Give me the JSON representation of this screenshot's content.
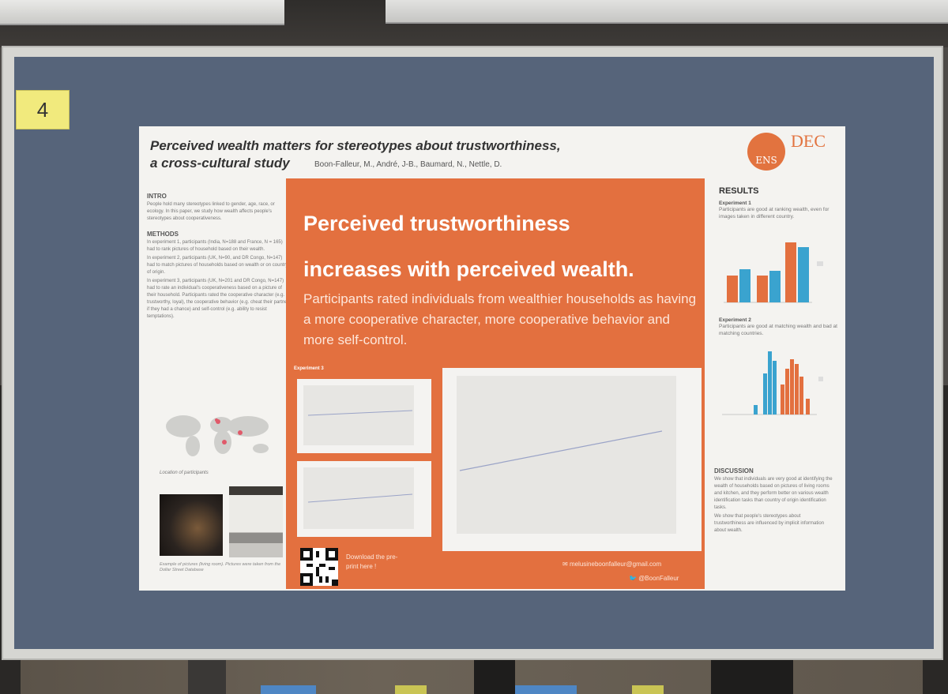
{
  "board": {
    "number": "4"
  },
  "poster": {
    "title_line1": "Perceived wealth matters for stereotypes about trustworthiness,",
    "title_line2": "a cross-cultural study",
    "authors": "Boon-Falleur, M., André, J-B., Baumard, N., Nettle, D.",
    "logo": {
      "mark": "ENS",
      "name": "DEC",
      "accent_color": "#e2733f"
    },
    "left": {
      "intro_head": "INTRO",
      "intro_text": "People hold many stereotypes linked to gender, age, race, or ecology. In this paper, we study how wealth affects people's stereotypes about cooperativeness.",
      "methods_head": "METHODS",
      "methods": [
        "In experiment 1, participants (India, N=188 and France, N = 165) had to rank pictures of household based on their wealth.",
        "In experiment 2, participants (UK, N=90, and DR Congo, N=147) had to match pictures of households based on wealth or on country of origin.",
        "In experiment 3, participants (UK, N=201 and DR Congo, N=147) had to rate an individual's cooperativeness based on a picture of their household. Participants rated the cooperative character (e.g. trustworthy, loyal), the cooperative behavior (e.g. cheat their partner if they had a chance) and self-control (e.g. ability to resist temptations)."
      ],
      "map_caption": "Location of participants",
      "photo_caption": "Example of pictures (living room). Pictures were taken from the Dollar Street Database"
    },
    "center": {
      "headline_line1": "Perceived trustworthiness",
      "headline_line2": "increases with perceived wealth.",
      "subtext": "Participants rated individuals from wealthier households as having a more cooperative character, more cooperative behavior and more self-control.",
      "exp3_label": "Experiment 3",
      "download_text": "Download the pre-print here !",
      "email": "melusineboonfalleur@gmail.com",
      "twitter": "@BoonFalleur",
      "panel_color": "#e3703f"
    },
    "right": {
      "results_head": "RESULTS",
      "exp1_head": "Experiment 1",
      "exp1_text": "Participants are good at ranking wealth, even for images taken in different country.",
      "exp2_head": "Experiment 2",
      "exp2_text": "Participants are good at matching wealth and bad at matching countries.",
      "discussion_head": "DISCUSSION",
      "discussion": [
        "We show that individuals are very good at identifying the wealth of households based on pictures of living rooms and kitchen, and they perform better on various wealth identification tasks than country of origin identification tasks.",
        "We show that people's stereotypes about trustworthiness are influenced by implicit information about wealth."
      ],
      "series_colors": {
        "orange": "#e3703f",
        "blue": "#3aa3cf"
      }
    }
  }
}
